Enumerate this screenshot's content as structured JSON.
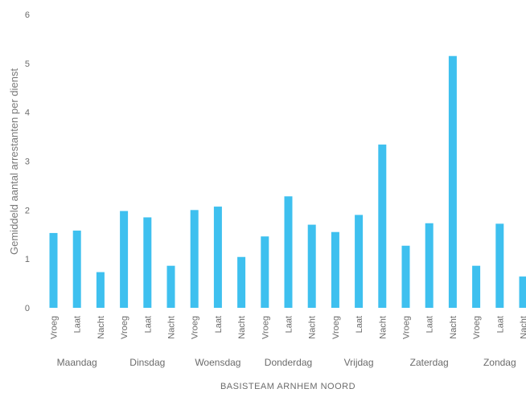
{
  "chart_data": {
    "type": "bar",
    "ylabel": "Gemiddeld aantal arrestanten per dienst",
    "xlabel": "BASISTEAM ARNHEM NOORD",
    "ylim": [
      0,
      6
    ],
    "yticks": [
      "0",
      "1",
      "2",
      "3",
      "4",
      "5",
      "6"
    ],
    "grid": false,
    "bar_color": "#3ec0ef",
    "groups": [
      {
        "name": "Maandag",
        "shifts": [
          "Vroeg",
          "Laat",
          "Nacht"
        ],
        "values": [
          1.53,
          1.58,
          0.73
        ]
      },
      {
        "name": "Dinsdag",
        "shifts": [
          "Vroeg",
          "Laat",
          "Nacht"
        ],
        "values": [
          1.98,
          1.85,
          0.86
        ]
      },
      {
        "name": "Woensdag",
        "shifts": [
          "Vroeg",
          "Laat",
          "Nacht"
        ],
        "values": [
          2.0,
          2.07,
          1.04
        ]
      },
      {
        "name": "Donderdag",
        "shifts": [
          "Vroeg",
          "Laat",
          "Nacht"
        ],
        "values": [
          1.46,
          2.28,
          1.7
        ]
      },
      {
        "name": "Vrijdag",
        "shifts": [
          "Vroeg",
          "Laat",
          "Nacht"
        ],
        "values": [
          1.55,
          1.9,
          3.34
        ]
      },
      {
        "name": "Zaterdag",
        "shifts": [
          "Vroeg",
          "Laat",
          "Nacht"
        ],
        "values": [
          1.27,
          1.73,
          5.15
        ]
      },
      {
        "name": "Zondag",
        "shifts": [
          "Vroeg",
          "Laat",
          "Nacht"
        ],
        "values": [
          0.86,
          1.72,
          0.64
        ]
      }
    ]
  }
}
